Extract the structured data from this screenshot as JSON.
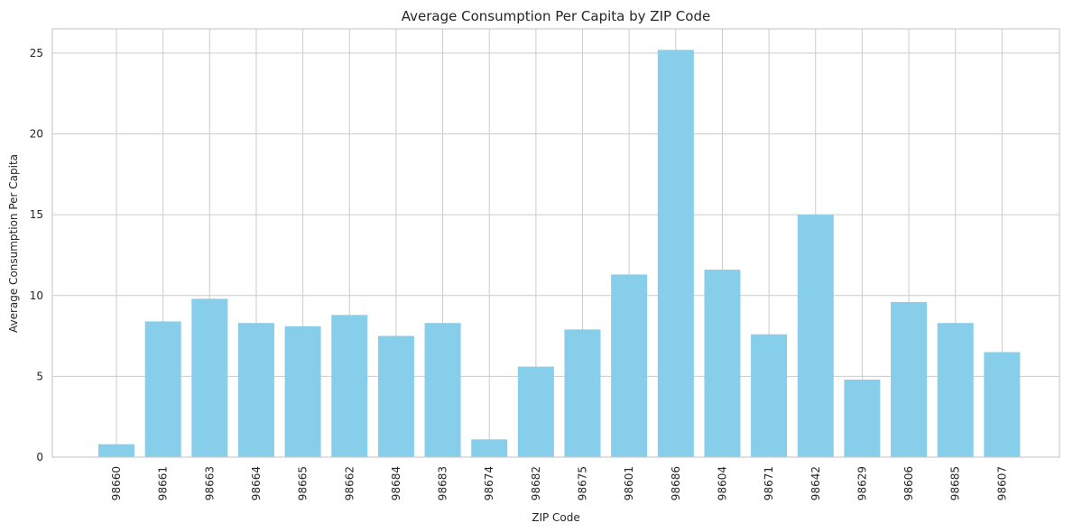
{
  "chart_data": {
    "type": "bar",
    "title": "Average Consumption Per Capita by ZIP Code",
    "xlabel": "ZIP Code",
    "ylabel": "Average Consumption Per Capita",
    "categories": [
      "98660",
      "98661",
      "98663",
      "98664",
      "98665",
      "98662",
      "98684",
      "98683",
      "98674",
      "98682",
      "98675",
      "98601",
      "98686",
      "98604",
      "98671",
      "98642",
      "98629",
      "98606",
      "98685",
      "98607"
    ],
    "values": [
      0.8,
      8.4,
      9.8,
      8.3,
      8.1,
      8.8,
      7.5,
      8.3,
      1.1,
      5.6,
      7.9,
      11.3,
      25.2,
      11.6,
      7.6,
      15.0,
      4.8,
      9.6,
      8.3,
      6.5
    ],
    "ylim": [
      0,
      26.5
    ],
    "yticks": [
      0,
      5,
      10,
      15,
      20,
      25
    ],
    "grid": true,
    "bar_color": "#87ceeb",
    "grid_color": "#cccccc"
  }
}
